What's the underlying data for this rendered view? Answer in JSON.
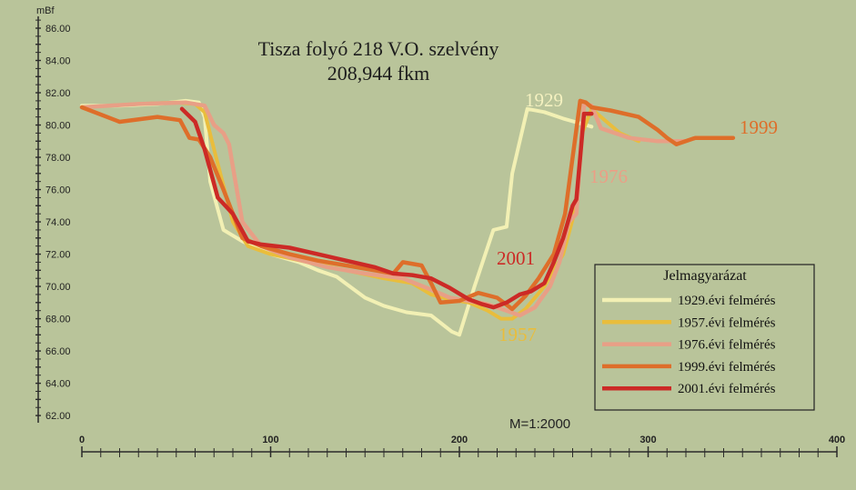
{
  "chart_data": {
    "type": "line",
    "title": [
      "Tisza folyó 218 V.O. szelvény",
      "208,944 fkm"
    ],
    "ylabel": "mBf",
    "ylim": [
      62,
      87
    ],
    "yticks": [
      "62.00",
      "64.00",
      "66.00",
      "68.00",
      "70.00",
      "72.00",
      "74.00",
      "76.00",
      "78.00",
      "80.00",
      "82.00",
      "84.00",
      "86.00"
    ],
    "xlim": [
      0,
      400
    ],
    "xticks": [
      "0",
      "100",
      "200",
      "300",
      "400"
    ],
    "scale_note": "M=1:2000",
    "legend": {
      "title": "Jelmagyarázat",
      "placement": "bottom-right"
    },
    "series": [
      {
        "name": "1929.évi felmérés",
        "label": "1929",
        "color": "#f2f0b4",
        "x": [
          0,
          20,
          40,
          55,
          62,
          65,
          68,
          75,
          85,
          100,
          115,
          125,
          135,
          150,
          160,
          172,
          185,
          196,
          200,
          208,
          218,
          225,
          228,
          236,
          245,
          255,
          270
        ],
        "y": [
          81.2,
          81.2,
          81.3,
          81.5,
          81.4,
          80.5,
          76.5,
          73.5,
          72.8,
          72.0,
          71.5,
          71.0,
          70.6,
          69.3,
          68.8,
          68.4,
          68.2,
          67.2,
          67.0,
          70.0,
          73.5,
          73.7,
          77.0,
          81.0,
          80.8,
          80.4,
          79.9
        ]
      },
      {
        "name": "1957.évi felmérés",
        "label": "1957",
        "color": "#e9bd3c",
        "x": [
          0,
          30,
          50,
          60,
          65,
          70,
          80,
          88,
          100,
          120,
          140,
          160,
          175,
          185,
          195,
          205,
          215,
          222,
          228,
          235,
          245,
          255,
          262,
          265,
          270,
          285,
          295
        ],
        "y": [
          81.1,
          81.3,
          81.4,
          81.3,
          80.8,
          78.5,
          74.0,
          72.5,
          72.0,
          71.5,
          71.0,
          70.5,
          70.2,
          69.5,
          69.2,
          69.0,
          68.5,
          68.0,
          68.0,
          68.6,
          70.0,
          72.0,
          75.0,
          79.5,
          81.0,
          79.5,
          79.0
        ]
      },
      {
        "name": "1976.évi felmérés",
        "label": "1976",
        "color": "#e89f86",
        "x": [
          0,
          30,
          55,
          65,
          70,
          75,
          78,
          85,
          95,
          110,
          130,
          150,
          170,
          185,
          195,
          205,
          215,
          225,
          232,
          240,
          248,
          253,
          258,
          262,
          264,
          266,
          270,
          275,
          290,
          305,
          320
        ],
        "y": [
          81.1,
          81.3,
          81.4,
          81.2,
          80.0,
          79.5,
          78.8,
          74.0,
          72.5,
          71.8,
          71.2,
          70.8,
          70.5,
          69.8,
          69.3,
          69.1,
          68.9,
          68.5,
          68.2,
          68.7,
          70.0,
          71.5,
          74.0,
          74.5,
          78.0,
          81.3,
          81.2,
          79.8,
          79.2,
          79.0,
          79.0
        ]
      },
      {
        "name": "1999.évi felmérés",
        "label": "1999",
        "color": "#de6e2a",
        "x": [
          0,
          20,
          40,
          52,
          57,
          62,
          68,
          75,
          85,
          95,
          110,
          125,
          140,
          155,
          165,
          170,
          180,
          185,
          190,
          200,
          210,
          220,
          228,
          235,
          242,
          250,
          256,
          260,
          264,
          267,
          270,
          280,
          295,
          305,
          310,
          315,
          325,
          335,
          345
        ],
        "y": [
          81.1,
          80.2,
          80.5,
          80.3,
          79.2,
          79.1,
          78.0,
          76.0,
          73.0,
          72.5,
          72.0,
          71.6,
          71.3,
          71.0,
          70.8,
          71.5,
          71.3,
          70.2,
          69.0,
          69.1,
          69.6,
          69.3,
          68.6,
          69.4,
          70.5,
          72.0,
          74.5,
          78.0,
          81.5,
          81.4,
          81.1,
          80.9,
          80.5,
          79.7,
          79.2,
          78.8,
          79.2,
          79.2,
          79.2
        ]
      },
      {
        "name": "2001.évi felmérés",
        "label": "2001",
        "color": "#cc2a26",
        "x": [
          53,
          60,
          65,
          72,
          80,
          88,
          95,
          110,
          125,
          140,
          155,
          165,
          175,
          185,
          195,
          205,
          212,
          218,
          225,
          232,
          238,
          245,
          250,
          255,
          260,
          262,
          264,
          266,
          270
        ],
        "y": [
          81.0,
          80.2,
          78.5,
          75.5,
          74.5,
          72.8,
          72.6,
          72.4,
          72.0,
          71.6,
          71.2,
          70.8,
          70.7,
          70.5,
          69.9,
          69.2,
          68.9,
          68.7,
          69.0,
          69.5,
          69.7,
          70.2,
          71.5,
          73.0,
          75.0,
          75.4,
          78.0,
          80.7,
          80.7
        ]
      }
    ]
  }
}
